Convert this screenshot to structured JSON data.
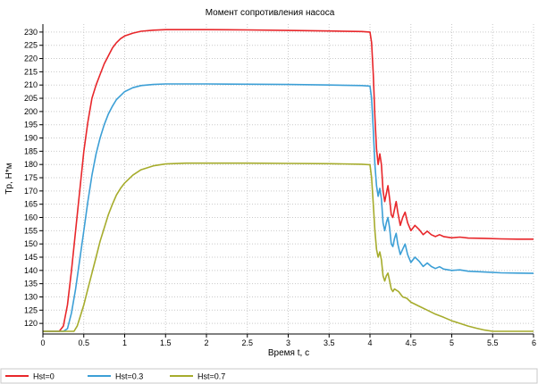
{
  "chart_data": {
    "type": "line",
    "title": "Момент сопротивления насоса",
    "xlabel": "Время t, с",
    "ylabel": "Tp, Н*м",
    "xlim": [
      0,
      6
    ],
    "ylim": [
      116,
      233
    ],
    "x_ticks": [
      0,
      0.5,
      1,
      1.5,
      2,
      2.5,
      3,
      3.5,
      4,
      4.5,
      5,
      5.5,
      6
    ],
    "x_tick_labels": [
      "0",
      "0.5",
      "1",
      "1.5",
      "2",
      "2.5",
      "3",
      "3.5",
      "4",
      "4.5",
      "5",
      "5.5",
      "6"
    ],
    "y_ticks": [
      120,
      125,
      130,
      135,
      140,
      145,
      150,
      155,
      160,
      165,
      170,
      175,
      180,
      185,
      190,
      195,
      200,
      205,
      210,
      215,
      220,
      225,
      230
    ],
    "grid": true,
    "legend_position": "bottom",
    "series": [
      {
        "name": "Hst=0",
        "color": "#e8262a",
        "points": [
          [
            0,
            117
          ],
          [
            0.2,
            117
          ],
          [
            0.25,
            119
          ],
          [
            0.3,
            127
          ],
          [
            0.35,
            140
          ],
          [
            0.4,
            155
          ],
          [
            0.45,
            170
          ],
          [
            0.5,
            185
          ],
          [
            0.55,
            196
          ],
          [
            0.6,
            205
          ],
          [
            0.65,
            210
          ],
          [
            0.7,
            214
          ],
          [
            0.75,
            218
          ],
          [
            0.8,
            221
          ],
          [
            0.85,
            224
          ],
          [
            0.9,
            226
          ],
          [
            0.95,
            227.5
          ],
          [
            1.0,
            228.5
          ],
          [
            1.1,
            229.6
          ],
          [
            1.2,
            230.3
          ],
          [
            1.35,
            230.7
          ],
          [
            1.5,
            230.9
          ],
          [
            2.0,
            230.9
          ],
          [
            2.5,
            230.8
          ],
          [
            3.0,
            230.6
          ],
          [
            3.5,
            230.4
          ],
          [
            3.9,
            230.2
          ],
          [
            4.0,
            230.0
          ],
          [
            4.02,
            226
          ],
          [
            4.04,
            214
          ],
          [
            4.06,
            198
          ],
          [
            4.08,
            186
          ],
          [
            4.1,
            180
          ],
          [
            4.12,
            184
          ],
          [
            4.14,
            180
          ],
          [
            4.16,
            170
          ],
          [
            4.18,
            166
          ],
          [
            4.2,
            169
          ],
          [
            4.22,
            172
          ],
          [
            4.24,
            167
          ],
          [
            4.26,
            161
          ],
          [
            4.28,
            160
          ],
          [
            4.3,
            163
          ],
          [
            4.32,
            166
          ],
          [
            4.34,
            162
          ],
          [
            4.37,
            157
          ],
          [
            4.4,
            160
          ],
          [
            4.43,
            162
          ],
          [
            4.46,
            158
          ],
          [
            4.5,
            155
          ],
          [
            4.55,
            157
          ],
          [
            4.6,
            155.5
          ],
          [
            4.65,
            153.5
          ],
          [
            4.7,
            154.8
          ],
          [
            4.75,
            153.5
          ],
          [
            4.8,
            152.8
          ],
          [
            4.85,
            153.5
          ],
          [
            4.9,
            152.8
          ],
          [
            5.0,
            152.3
          ],
          [
            5.1,
            152.6
          ],
          [
            5.2,
            152.2
          ],
          [
            5.4,
            152.1
          ],
          [
            5.6,
            151.9
          ],
          [
            5.8,
            151.8
          ],
          [
            6.0,
            151.8
          ]
        ]
      },
      {
        "name": "Hst=0.3",
        "color": "#3c9fd6",
        "points": [
          [
            0,
            117
          ],
          [
            0.25,
            117
          ],
          [
            0.3,
            118
          ],
          [
            0.35,
            124
          ],
          [
            0.4,
            133
          ],
          [
            0.45,
            144
          ],
          [
            0.5,
            155
          ],
          [
            0.55,
            166
          ],
          [
            0.6,
            176
          ],
          [
            0.65,
            184
          ],
          [
            0.7,
            190
          ],
          [
            0.75,
            195
          ],
          [
            0.8,
            199
          ],
          [
            0.85,
            202
          ],
          [
            0.9,
            204.5
          ],
          [
            0.95,
            206
          ],
          [
            1.0,
            207.5
          ],
          [
            1.1,
            209
          ],
          [
            1.2,
            209.8
          ],
          [
            1.35,
            210.2
          ],
          [
            1.5,
            210.4
          ],
          [
            2.0,
            210.4
          ],
          [
            2.5,
            210.3
          ],
          [
            3.0,
            210.2
          ],
          [
            3.5,
            210.0
          ],
          [
            3.9,
            209.8
          ],
          [
            4.0,
            209.6
          ],
          [
            4.02,
            205
          ],
          [
            4.04,
            193
          ],
          [
            4.06,
            180
          ],
          [
            4.08,
            172
          ],
          [
            4.1,
            168
          ],
          [
            4.12,
            171
          ],
          [
            4.14,
            167
          ],
          [
            4.16,
            158
          ],
          [
            4.18,
            155
          ],
          [
            4.2,
            158
          ],
          [
            4.22,
            160
          ],
          [
            4.24,
            156
          ],
          [
            4.26,
            150
          ],
          [
            4.28,
            149
          ],
          [
            4.3,
            152
          ],
          [
            4.32,
            154
          ],
          [
            4.34,
            150
          ],
          [
            4.37,
            146
          ],
          [
            4.4,
            148
          ],
          [
            4.43,
            150
          ],
          [
            4.46,
            146
          ],
          [
            4.5,
            143
          ],
          [
            4.55,
            145
          ],
          [
            4.6,
            143.5
          ],
          [
            4.65,
            141.5
          ],
          [
            4.7,
            142.8
          ],
          [
            4.75,
            141.5
          ],
          [
            4.8,
            140.7
          ],
          [
            4.85,
            141.4
          ],
          [
            4.9,
            140.5
          ],
          [
            5.0,
            140.0
          ],
          [
            5.1,
            140.2
          ],
          [
            5.2,
            139.7
          ],
          [
            5.4,
            139.4
          ],
          [
            5.6,
            139.1
          ],
          [
            5.8,
            139.0
          ],
          [
            6.0,
            138.9
          ]
        ]
      },
      {
        "name": "Hst=0.7",
        "color": "#a6ac2c",
        "points": [
          [
            0,
            117
          ],
          [
            0.38,
            117
          ],
          [
            0.42,
            119
          ],
          [
            0.45,
            122
          ],
          [
            0.5,
            127
          ],
          [
            0.55,
            133
          ],
          [
            0.6,
            139
          ],
          [
            0.65,
            145
          ],
          [
            0.7,
            151
          ],
          [
            0.75,
            156
          ],
          [
            0.8,
            161
          ],
          [
            0.85,
            165
          ],
          [
            0.9,
            168.5
          ],
          [
            0.95,
            171
          ],
          [
            1.0,
            173
          ],
          [
            1.1,
            176
          ],
          [
            1.2,
            178
          ],
          [
            1.35,
            179.5
          ],
          [
            1.5,
            180.2
          ],
          [
            1.75,
            180.5
          ],
          [
            2.0,
            180.5
          ],
          [
            2.5,
            180.5
          ],
          [
            3.0,
            180.4
          ],
          [
            3.5,
            180.3
          ],
          [
            3.9,
            180.1
          ],
          [
            4.0,
            179.9
          ],
          [
            4.02,
            175
          ],
          [
            4.04,
            165
          ],
          [
            4.06,
            155
          ],
          [
            4.08,
            148
          ],
          [
            4.1,
            145
          ],
          [
            4.12,
            147
          ],
          [
            4.14,
            144
          ],
          [
            4.16,
            138
          ],
          [
            4.18,
            136
          ],
          [
            4.2,
            138
          ],
          [
            4.22,
            139
          ],
          [
            4.24,
            136
          ],
          [
            4.26,
            133
          ],
          [
            4.28,
            132
          ],
          [
            4.3,
            133
          ],
          [
            4.35,
            132
          ],
          [
            4.4,
            130
          ],
          [
            4.45,
            129.5
          ],
          [
            4.5,
            128
          ],
          [
            4.6,
            126.5
          ],
          [
            4.7,
            125
          ],
          [
            4.8,
            123.5
          ],
          [
            4.9,
            122.3
          ],
          [
            5.0,
            121
          ],
          [
            5.1,
            120
          ],
          [
            5.2,
            119
          ],
          [
            5.3,
            118.2
          ],
          [
            5.4,
            117.5
          ],
          [
            5.5,
            117
          ],
          [
            6.0,
            117
          ]
        ]
      }
    ]
  }
}
